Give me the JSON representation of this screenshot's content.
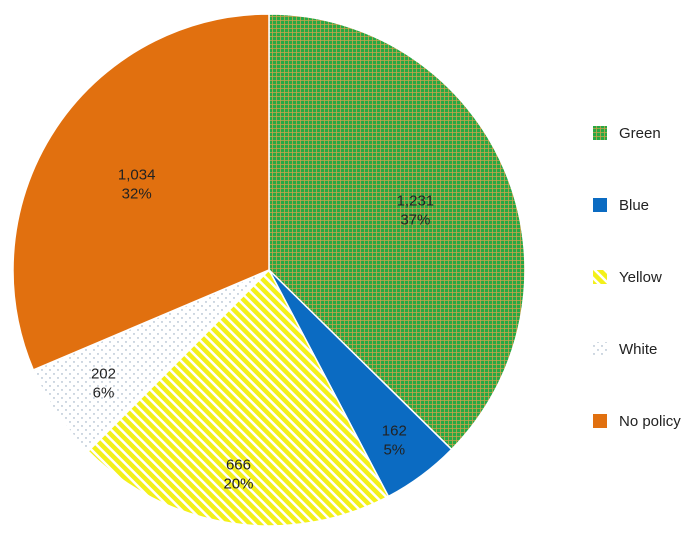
{
  "chart_data": {
    "type": "pie",
    "title": "",
    "legend_position": "right",
    "slices": [
      {
        "name": "Green",
        "value": 1231,
        "percent": "37%",
        "value_label": "1,231",
        "color": "#27a844",
        "pattern": "grid"
      },
      {
        "name": "Blue",
        "value": 162,
        "percent": "5%",
        "value_label": "162",
        "color": "#0b6bc2",
        "pattern": "solid"
      },
      {
        "name": "Yellow",
        "value": 666,
        "percent": "20%",
        "value_label": "666",
        "color": "#f3f01a",
        "pattern": "diagonal-stripes"
      },
      {
        "name": "White",
        "value": 202,
        "percent": "6%",
        "value_label": "202",
        "color": "#ffffff",
        "pattern": "dots"
      },
      {
        "name": "No policy",
        "value": 1034,
        "percent": "32%",
        "value_label": "1,034",
        "color": "#e1700f",
        "pattern": "solid"
      }
    ]
  }
}
